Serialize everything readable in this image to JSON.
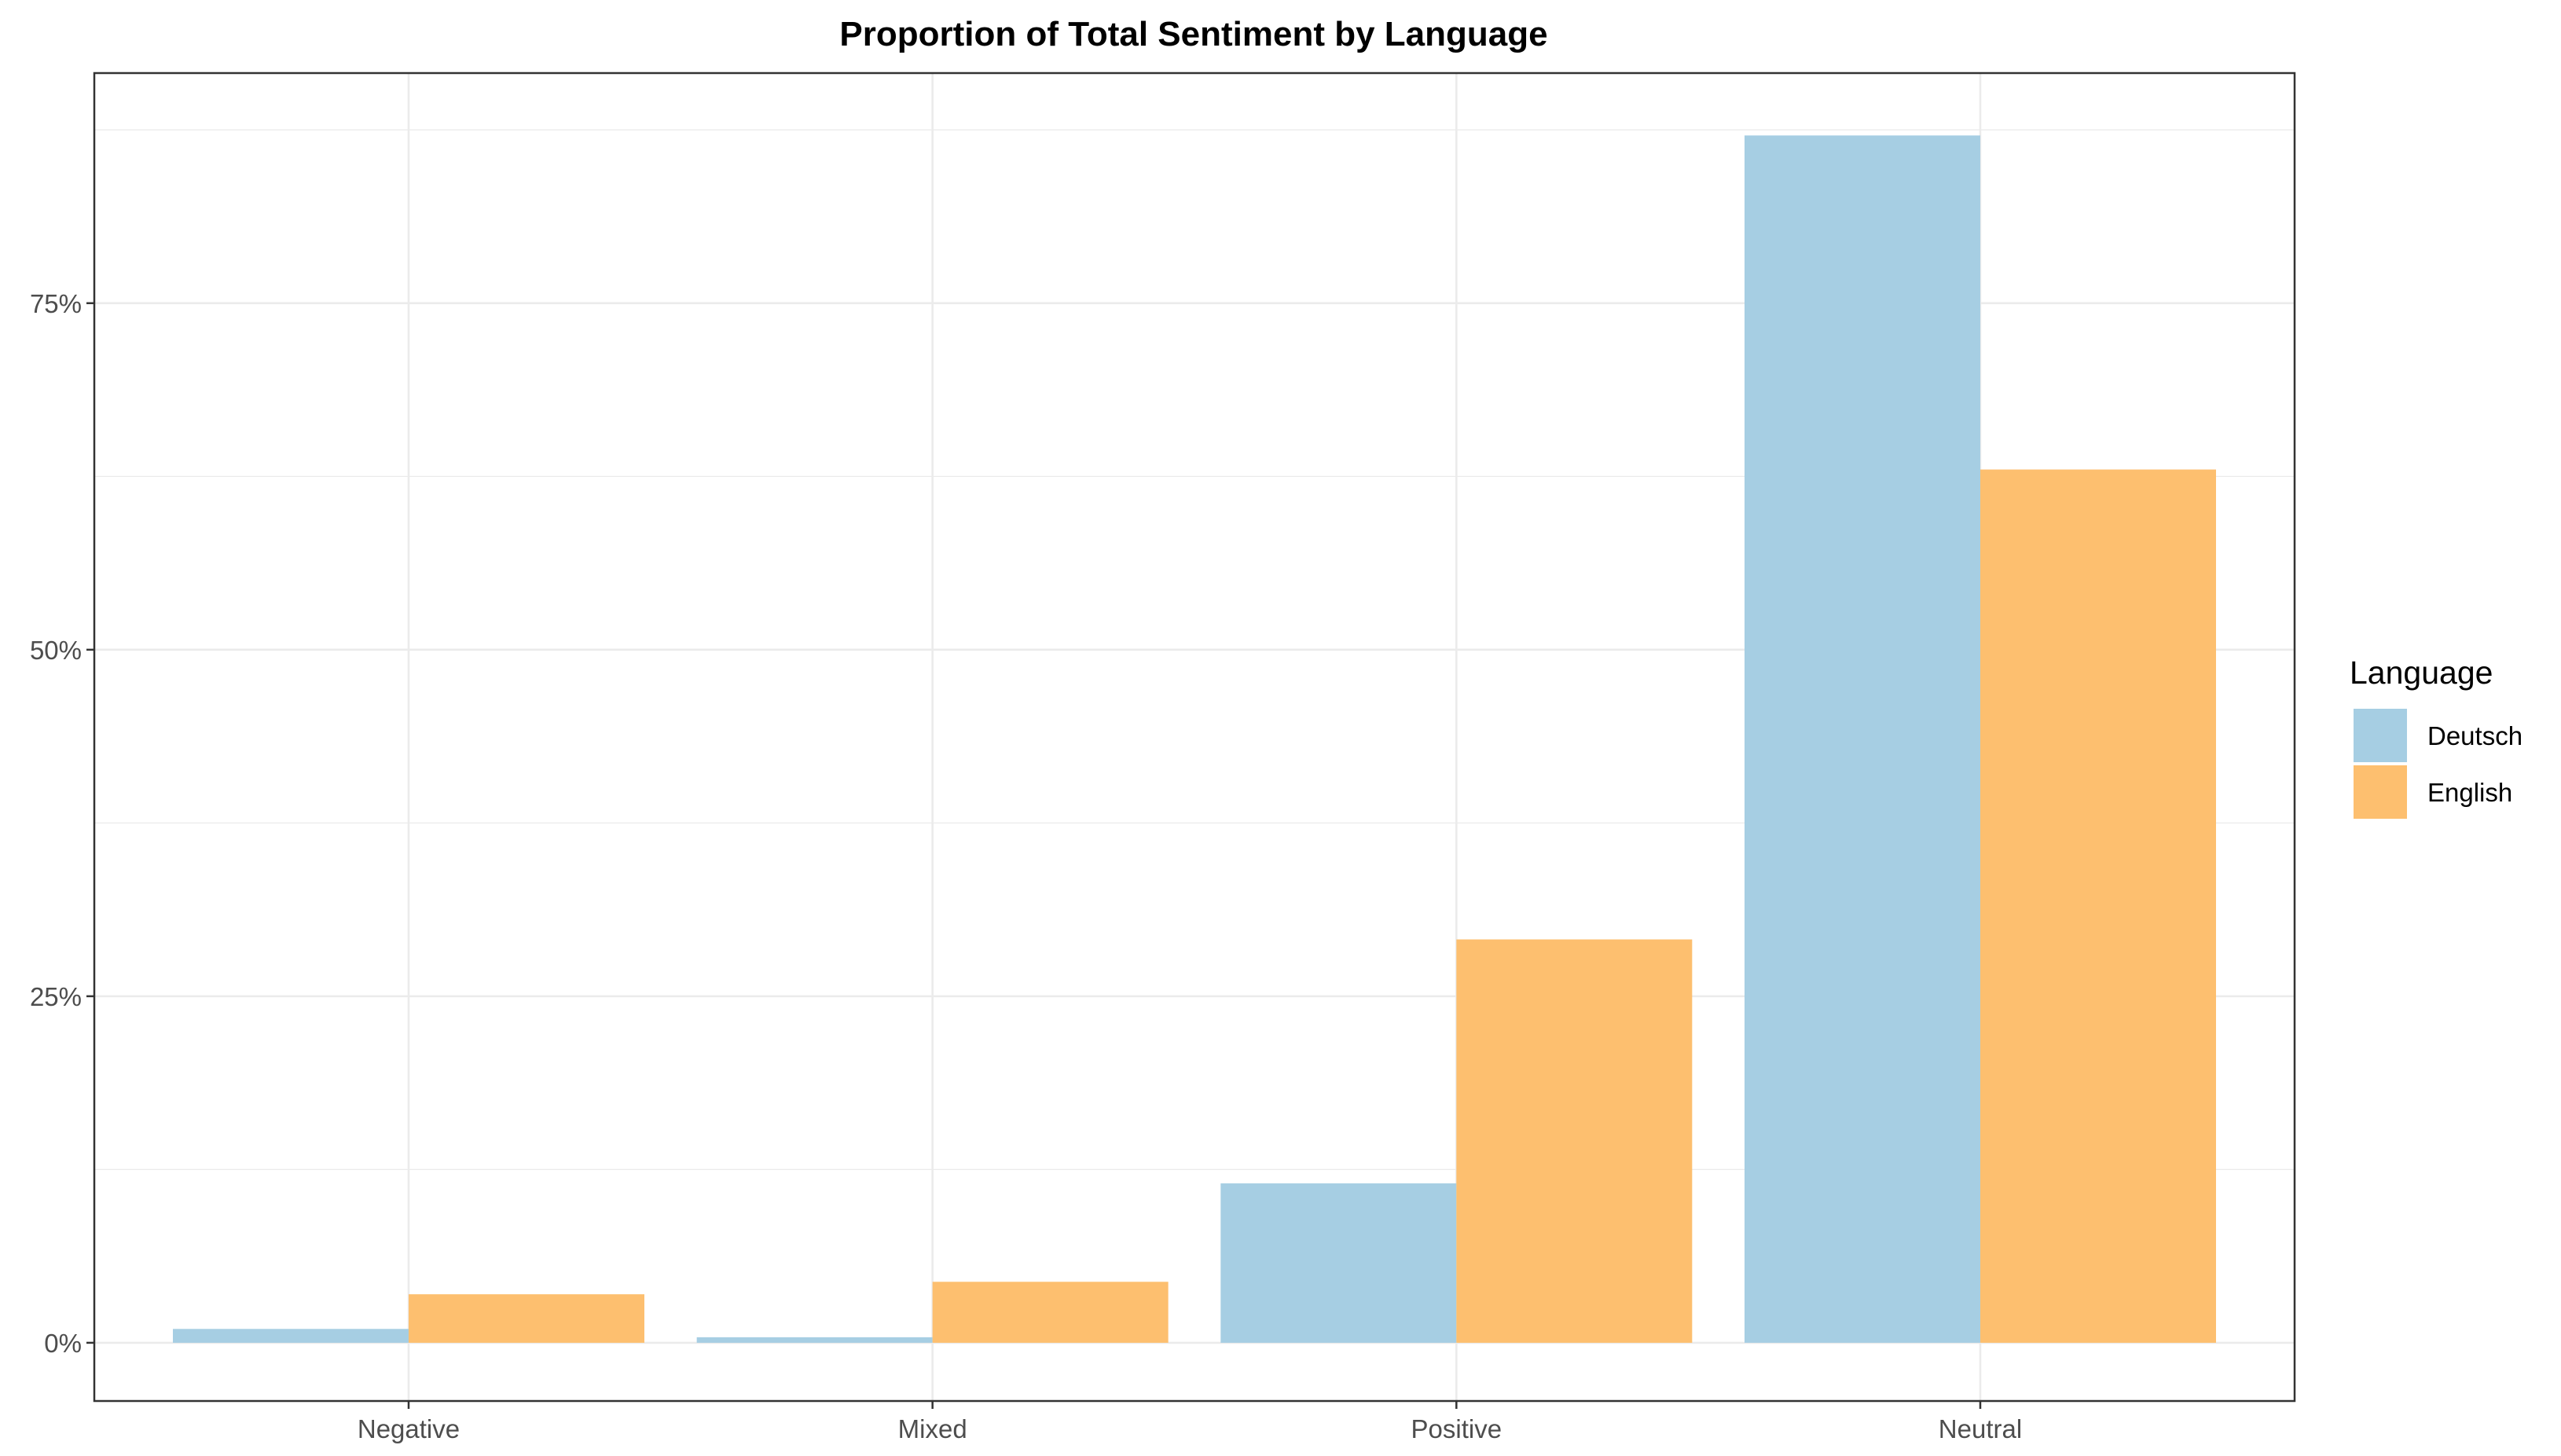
{
  "chart_data": {
    "type": "bar",
    "title": "Proportion of Total Sentiment by Language",
    "xlabel": "",
    "ylabel": "",
    "categories": [
      "Negative",
      "Mixed",
      "Positive",
      "Neutral"
    ],
    "series": [
      {
        "name": "Deutsch",
        "values": [
          0.01,
          0.004,
          0.115,
          0.871
        ],
        "color": "#a6cee3"
      },
      {
        "name": "English",
        "values": [
          0.035,
          0.044,
          0.291,
          0.63
        ],
        "color": "#fdbf6f"
      }
    ],
    "ylim": [
      -0.042,
      0.916
    ],
    "y_ticks": [
      {
        "value": 0,
        "label": "0%"
      },
      {
        "value": 0.25,
        "label": "25%"
      },
      {
        "value": 0.5,
        "label": "50%"
      },
      {
        "value": 0.75,
        "label": "75%"
      }
    ],
    "y_minor_ticks": [
      0.125,
      0.375,
      0.625,
      0.875
    ],
    "grid": true,
    "legend": {
      "title": "Language",
      "position": "right"
    }
  }
}
